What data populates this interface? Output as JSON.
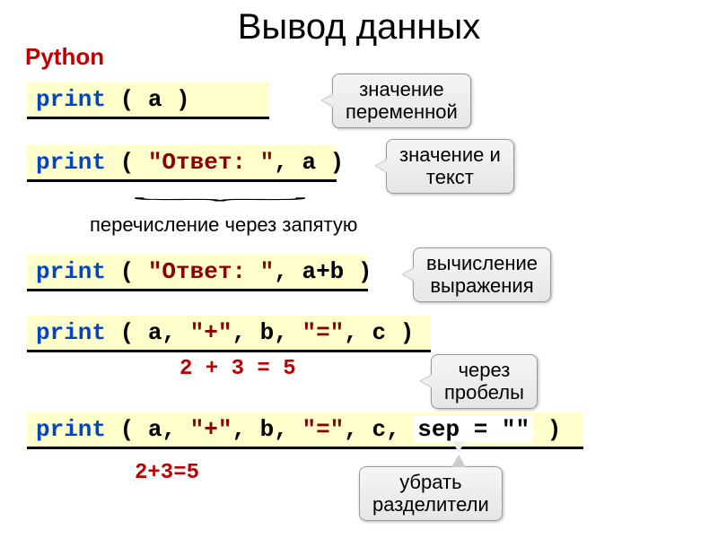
{
  "title": "Вывод данных",
  "python_label": "Python",
  "code1": {
    "kw": "print",
    "rest": " ( a )"
  },
  "code2": {
    "kw": "print",
    "paren_open": " ( ",
    "str": "\"Ответ: \"",
    "rest": ", a )"
  },
  "code3": {
    "kw": "print",
    "paren_open": " ( ",
    "str": "\"Ответ: \"",
    "rest": ", a+b )"
  },
  "code4": {
    "kw": "print",
    "paren_open": " ( a, ",
    "s1": "\"+\"",
    "m1": ", b, ",
    "s2": "\"=\"",
    "m2": ", c )"
  },
  "code5": {
    "kw": "print",
    "paren_open": " ( a, ",
    "s1": "\"+\"",
    "m1": ", b, ",
    "s2": "\"=\"",
    "m2": ", c, ",
    "sep": "sep = \"\"",
    "end": " )"
  },
  "label1": "значение\nпеременной",
  "label2": "значение и\nтекст",
  "label3": "вычисление\nвыражения",
  "label4": "через\nпробелы",
  "label5": "убрать\nразделители",
  "caption_enum": "перечисление через запятую",
  "red1": "2 + 3 = 5",
  "red2": "2+3=5",
  "styling": {
    "code_bg": "#ffffcc",
    "label_bg_gradient": [
      "#f5f5f5",
      "#e6e6e6"
    ],
    "kw_color": "#0044cc",
    "str_color": "#8b0000",
    "red_color": "#c00000",
    "title_fontsize": 40,
    "code_fontsize": 26,
    "label_fontsize": 22
  }
}
